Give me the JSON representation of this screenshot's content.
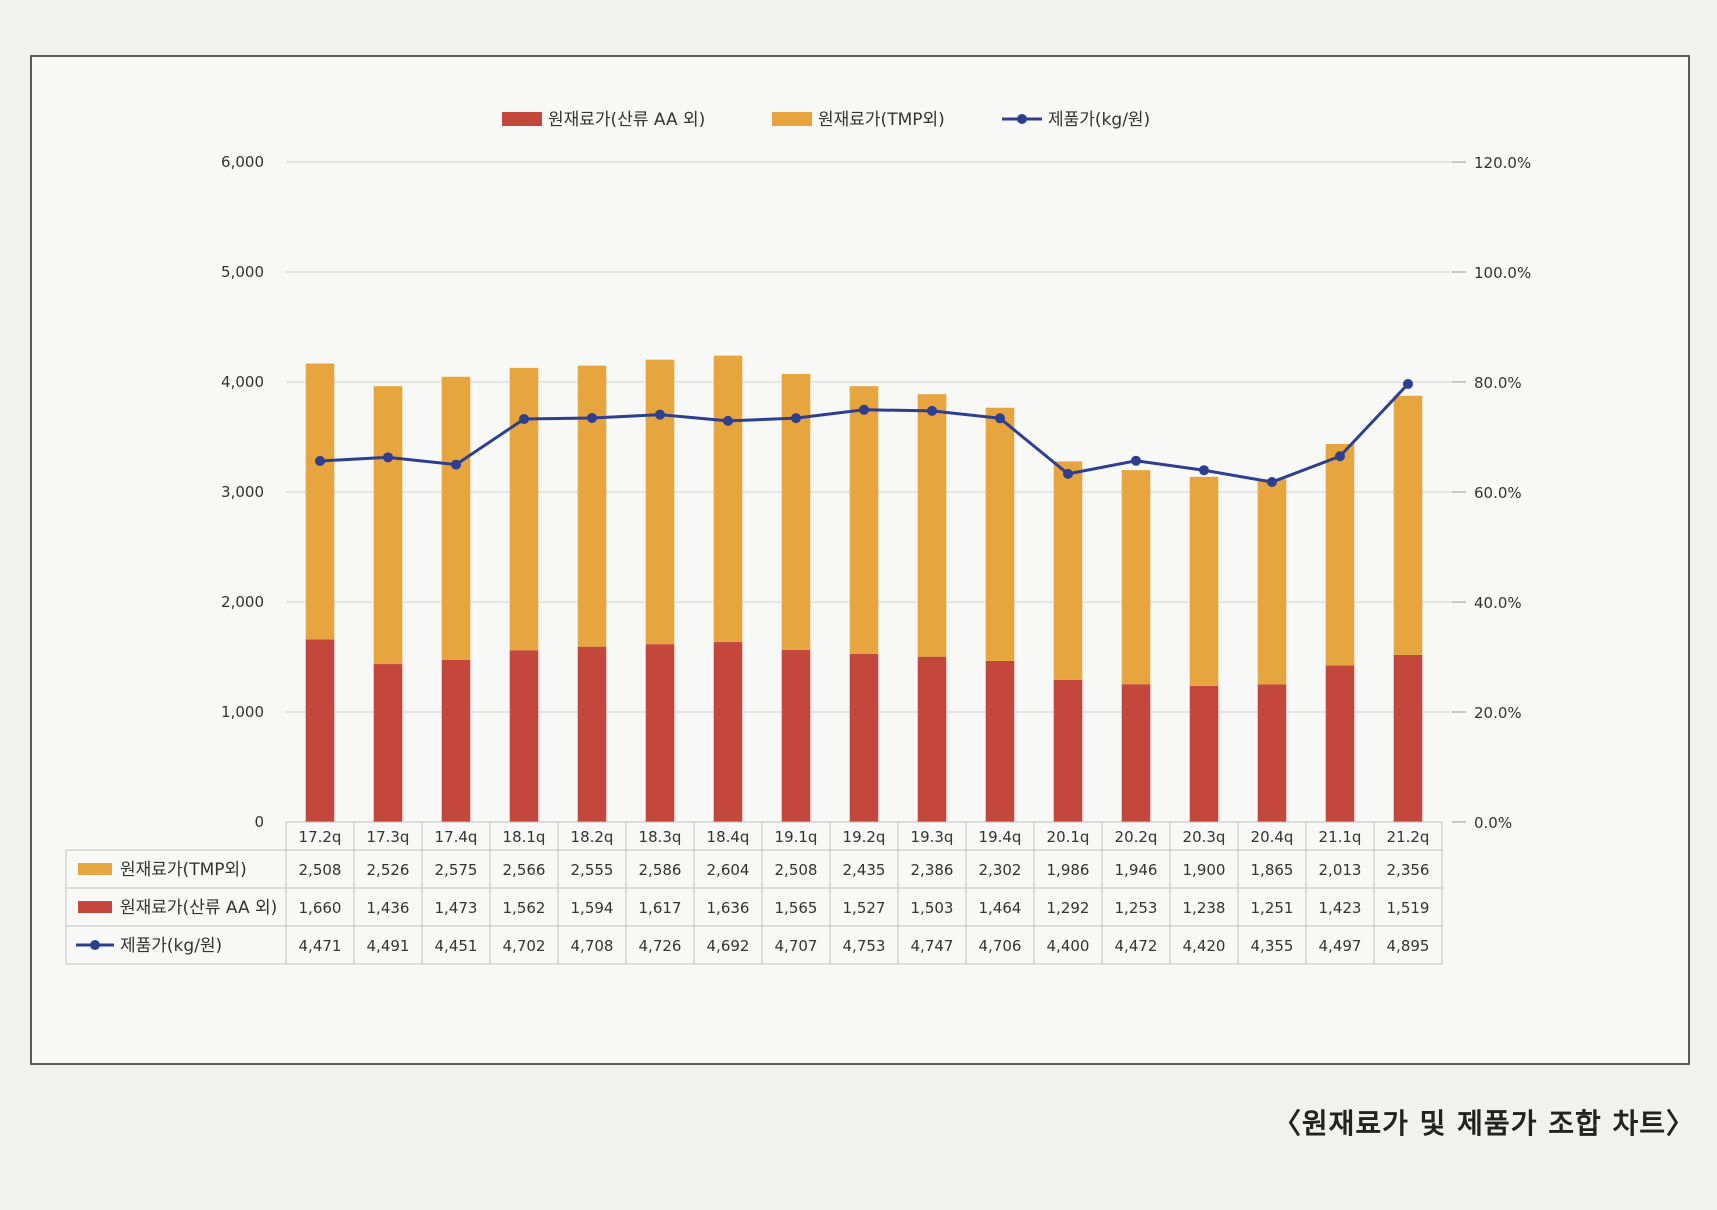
{
  "caption": "〈원재료가 및 제품가 조합 차트〉",
  "chart_data": {
    "type": "bar",
    "stacked": true,
    "categories": [
      "17.2q",
      "17.3q",
      "17.4q",
      "18.1q",
      "18.2q",
      "18.3q",
      "18.4q",
      "19.1q",
      "19.2q",
      "19.3q",
      "19.4q",
      "20.1q",
      "20.2q",
      "20.3q",
      "20.4q",
      "21.1q",
      "21.2q"
    ],
    "series": [
      {
        "name": "원재료가(TMP외)",
        "kind": "bar",
        "axis": "left",
        "color": "#e6a53e",
        "values": [
          2508,
          2526,
          2575,
          2566,
          2555,
          2586,
          2604,
          2508,
          2435,
          2386,
          2302,
          1986,
          1946,
          1900,
          1865,
          2013,
          2356
        ]
      },
      {
        "name": "원재료가(산류 AA 외)",
        "kind": "bar",
        "axis": "left",
        "color": "#c4473b",
        "values": [
          1660,
          1436,
          1473,
          1562,
          1594,
          1617,
          1636,
          1565,
          1527,
          1503,
          1464,
          1292,
          1253,
          1238,
          1251,
          1423,
          1519
        ]
      },
      {
        "name": "제품가(kg/원)",
        "kind": "line",
        "axis": "left",
        "color": "#2e3f8f",
        "values": [
          4471,
          4491,
          4451,
          4702,
          4708,
          4726,
          4692,
          4707,
          4753,
          4747,
          4706,
          4400,
          4472,
          4420,
          4355,
          4497,
          4895
        ]
      }
    ],
    "legend_labels": [
      "원재료가(산류 AA 외)",
      "원재료가(TMP외)",
      "제품가(kg/원)"
    ],
    "table_order": [
      0,
      1,
      2
    ],
    "y_left": {
      "lim": [
        0,
        6000
      ],
      "ticks": [
        "0",
        "1,000",
        "2,000",
        "3,000",
        "4,000",
        "5,000",
        "6,000"
      ]
    },
    "y_right": {
      "lim": [
        0,
        120
      ],
      "ticks": [
        "0.0%",
        "20.0%",
        "40.0%",
        "60.0%",
        "80.0%",
        "100.0%",
        "120.0%"
      ]
    },
    "line_y_range": [
      3500,
      5500
    ],
    "grid": true,
    "legend_position": "top",
    "data_table": true
  }
}
